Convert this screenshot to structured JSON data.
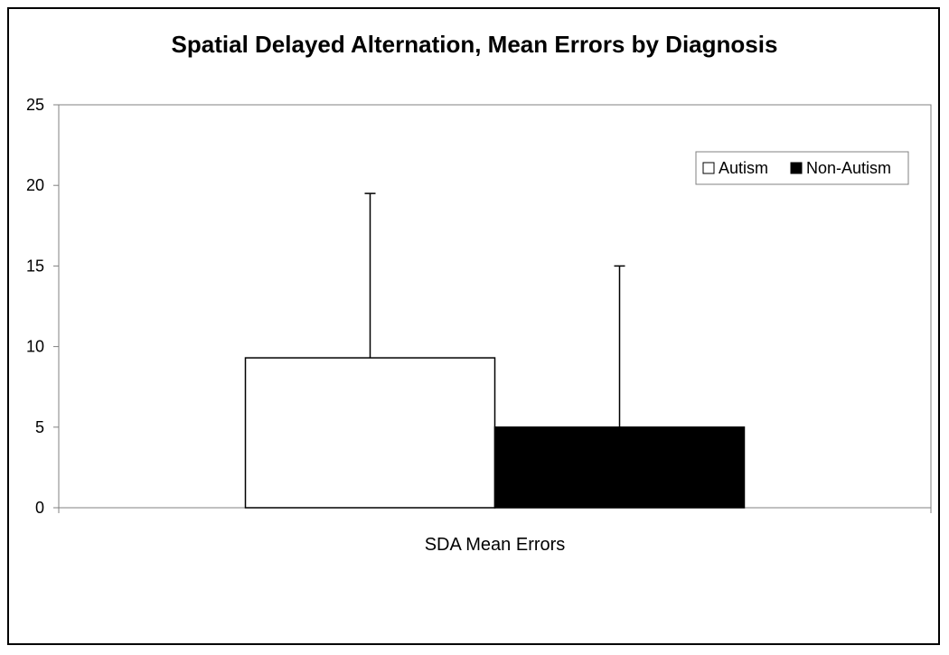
{
  "chart_data": {
    "type": "bar",
    "title": "Spatial Delayed Alternation, Mean Errors by Diagnosis",
    "categories": [
      "SDA Mean Errors"
    ],
    "series": [
      {
        "name": "Autism",
        "values": [
          9.3
        ],
        "error": [
          10.2
        ],
        "color": "#ffffff"
      },
      {
        "name": "Non-Autism",
        "values": [
          5.0
        ],
        "error": [
          10.0
        ],
        "color": "#000000"
      }
    ],
    "xlabel": "",
    "ylabel": "",
    "ylim": [
      0,
      25
    ],
    "yticks": [
      0,
      5,
      10,
      15,
      20,
      25
    ],
    "grid": false,
    "legend_position": "top-right"
  }
}
